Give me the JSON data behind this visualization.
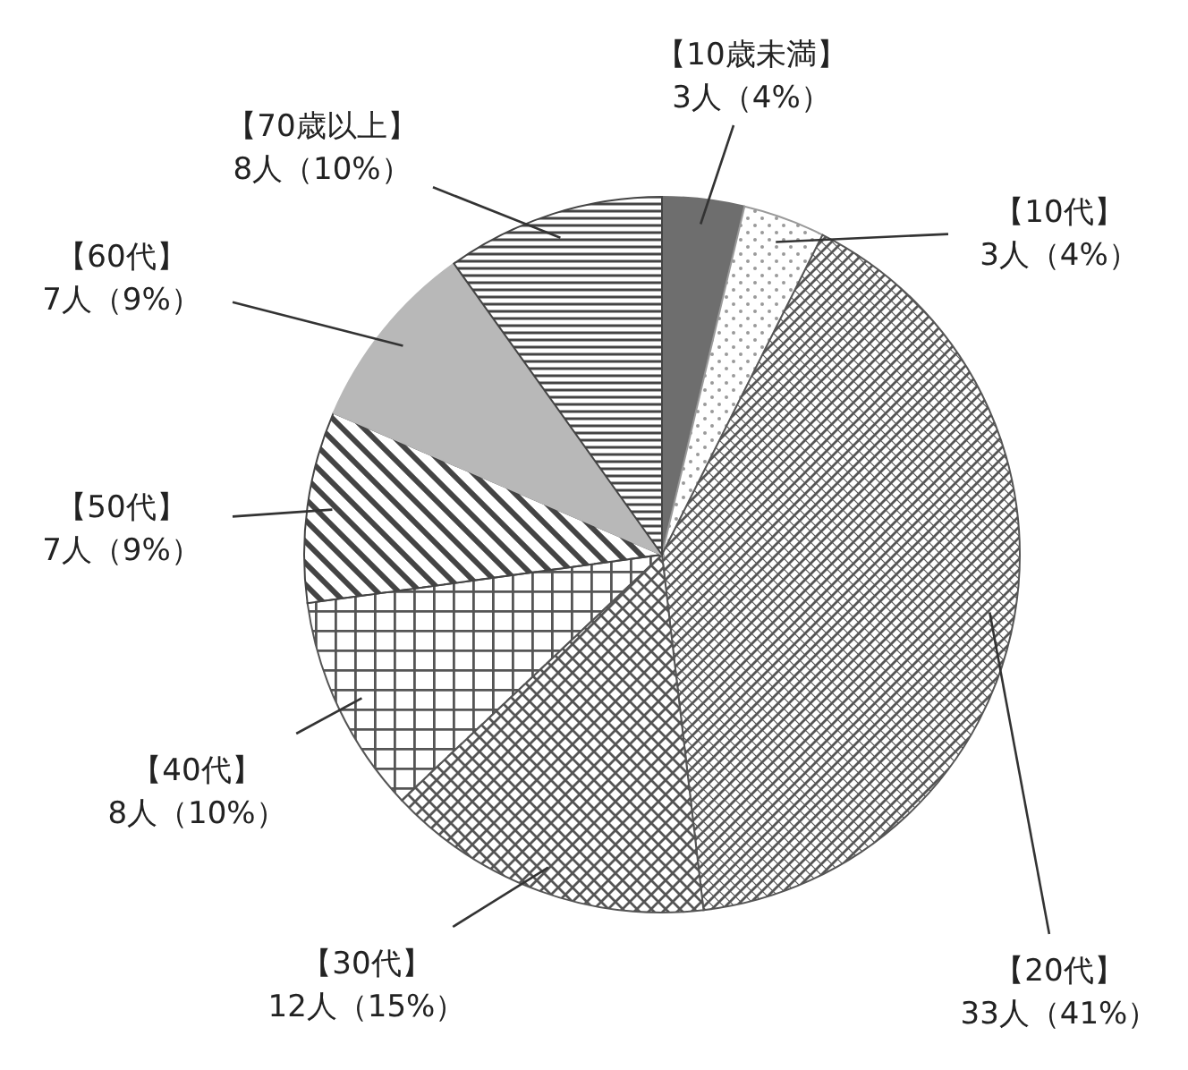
{
  "chart_data": {
    "type": "pie",
    "categories": [
      "【10歳未満】",
      "【10代】",
      "【20代】",
      "【30代】",
      "【40代】",
      "【50代】",
      "【60代】",
      "【70歳以上】"
    ],
    "values": [
      3,
      3,
      33,
      12,
      8,
      7,
      7,
      8
    ],
    "value_labels": [
      "3人（4%）",
      "3人（4%）",
      "33人（41%）",
      "12人（15%）",
      "8人（10%）",
      "7人（9%）",
      "7人（9%）",
      "8人（10%）"
    ],
    "colors": [
      "#6e6e6e",
      "#9a9a9a",
      "#555555",
      "#555555",
      "#555555",
      "#444444",
      "#b8b8b8",
      "#444444"
    ]
  }
}
